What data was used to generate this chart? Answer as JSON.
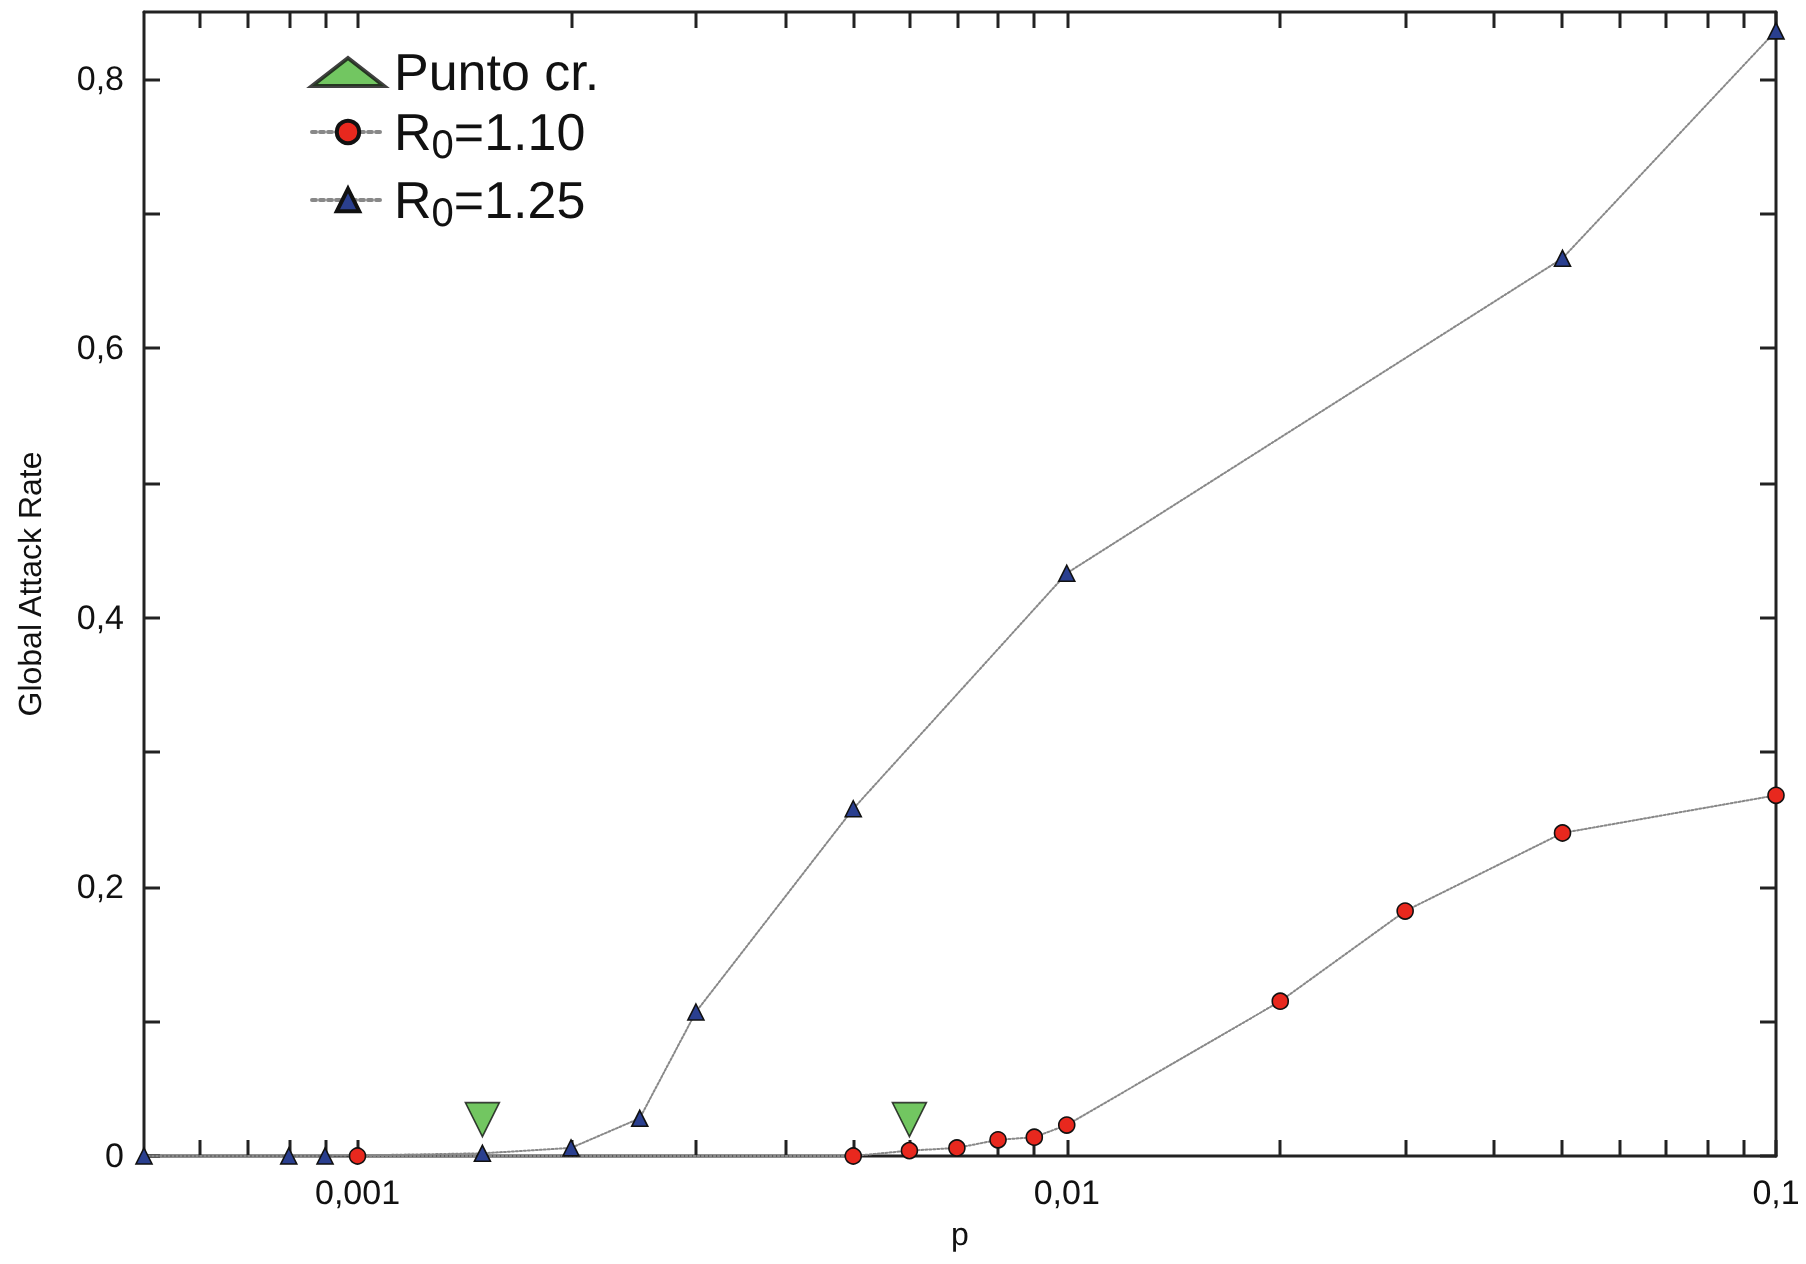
{
  "chart_data": {
    "type": "line",
    "xlabel": "p",
    "ylabel": "Global Attack Rate",
    "log": "x",
    "grid": false,
    "legend": "top left",
    "line_style": "dotted",
    "xlim": [
      0.0005,
      0.1
    ],
    "ylim": [
      0,
      0.85
    ],
    "xticks": [
      {
        "value": 0.0006,
        "label": null
      },
      {
        "value": 0.0007,
        "label": null
      },
      {
        "value": 0.0008,
        "label": null
      },
      {
        "value": 0.0009,
        "label": null
      },
      {
        "value": 0.001,
        "label": "0,001"
      },
      {
        "value": 0.002,
        "label": null
      },
      {
        "value": 0.003,
        "label": null
      },
      {
        "value": 0.004,
        "label": null
      },
      {
        "value": 0.005,
        "label": null
      },
      {
        "value": 0.006,
        "label": null
      },
      {
        "value": 0.007,
        "label": null
      },
      {
        "value": 0.008,
        "label": null
      },
      {
        "value": 0.009,
        "label": null
      },
      {
        "value": 0.01,
        "label": "0,01"
      },
      {
        "value": 0.02,
        "label": null
      },
      {
        "value": 0.03,
        "label": null
      },
      {
        "value": 0.04,
        "label": null
      },
      {
        "value": 0.05,
        "label": null
      },
      {
        "value": 0.06,
        "label": null
      },
      {
        "value": 0.07,
        "label": null
      },
      {
        "value": 0.08,
        "label": null
      },
      {
        "value": 0.09,
        "label": null
      },
      {
        "value": 0.1,
        "label": "0,1"
      }
    ],
    "yticks": [
      0,
      {
        "value": 0.1,
        "label": null
      },
      {
        "value": 0.2,
        "label": "0,2"
      },
      {
        "value": 0.3,
        "label": null
      },
      {
        "value": 0.4,
        "label": "0,4"
      },
      {
        "value": 0.5,
        "label": null
      },
      {
        "value": 0.6,
        "label": "0,6"
      },
      {
        "value": 0.7,
        "label": null
      },
      {
        "value": 0.8,
        "label": "0,8"
      }
    ],
    "series": [
      {
        "name": "Punto cr.",
        "type": "scatter",
        "marker": "triangle",
        "color": "#4fb83a",
        "x": [
          0.0015,
          0.006
        ],
        "values": [
          0.027,
          0.027
        ]
      },
      {
        "name": "R$_{0}$=1.10",
        "marker": "circle",
        "color": "#e8281e",
        "x": [
          0.001,
          0.005,
          0.006,
          0.007,
          0.008,
          0.009,
          0.01,
          0.02,
          0.03,
          0.05,
          0.1
        ],
        "values": [
          0,
          0,
          0.004,
          0.006,
          0.012,
          0.014,
          0.023,
          0.115,
          0.182,
          0.24,
          0.268
        ]
      },
      {
        "name": "R$_{0}$=1.25",
        "marker": "triangle",
        "color": "#2a3f8f",
        "x": [
          0.0005,
          0.0008,
          0.0009,
          0.0015,
          0.002,
          0.0025,
          0.003,
          0.005,
          0.01,
          0.05,
          0.1
        ],
        "values": [
          0,
          0,
          0,
          0.002,
          0.006,
          0.028,
          0.107,
          0.258,
          0.433,
          0.667,
          0.836
        ]
      }
    ]
  }
}
